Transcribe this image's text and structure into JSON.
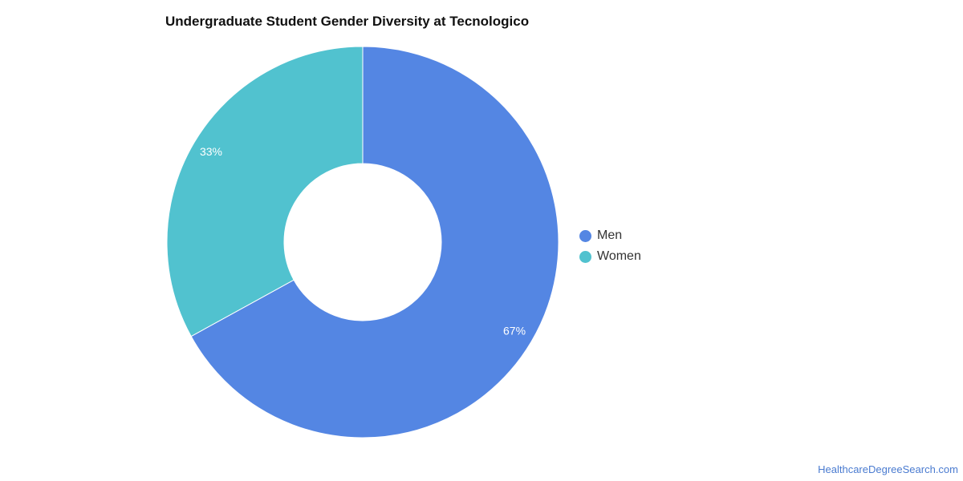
{
  "chart_data": {
    "type": "pie",
    "title": "Undergraduate Student Gender Diversity at Tecnologico",
    "categories": [
      "Men",
      "Women"
    ],
    "values": [
      67,
      33
    ],
    "value_labels": [
      "67%",
      "33%"
    ],
    "colors": [
      "#5486e3",
      "#51c2cf"
    ],
    "donut": true,
    "legend_position": "right"
  },
  "legend": {
    "items": [
      {
        "label": "Men",
        "color": "#5486e3"
      },
      {
        "label": "Women",
        "color": "#51c2cf"
      }
    ]
  },
  "watermark": "HealthcareDegreeSearch.com"
}
